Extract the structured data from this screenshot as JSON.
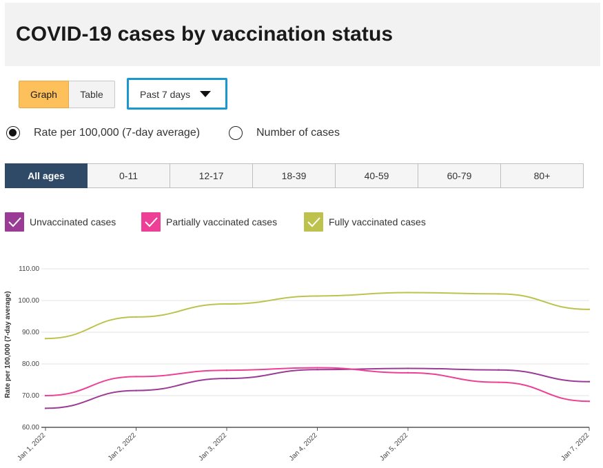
{
  "header": {
    "title": "COVID-19 cases by vaccination status"
  },
  "view_toggle": {
    "graph_label": "Graph",
    "table_label": "Table",
    "active": "Graph"
  },
  "period_select": {
    "value": "Past 7 days"
  },
  "measure_radio": [
    {
      "label": "Rate per 100,000 (7-day average)",
      "checked": true
    },
    {
      "label": "Number of cases",
      "checked": false
    }
  ],
  "age_tabs": {
    "active": "All ages",
    "items": [
      "All ages",
      "0-11",
      "12-17",
      "18-39",
      "40-59",
      "60-79",
      "80+"
    ]
  },
  "legend": [
    {
      "label": "Unvaccinated cases",
      "color": "#9a3b95",
      "checked": true
    },
    {
      "label": "Partially vaccinated cases",
      "color": "#ed3f95",
      "checked": true
    },
    {
      "label": "Fully vaccinated cases",
      "color": "#bdc24d",
      "checked": true
    }
  ],
  "chart_data": {
    "type": "line",
    "title": "",
    "ylabel": "Rate per 100,000 (7-day average)",
    "xlabel": "",
    "ylim": [
      60,
      110
    ],
    "yticks": [
      "60.00",
      "70.00",
      "80.00",
      "90.00",
      "100.00",
      "110.00"
    ],
    "x": [
      "2022-01-01",
      "2022-01-02",
      "2022-01-03",
      "2022-01-04",
      "2022-01-05",
      "2022-01-06",
      "2022-01-07"
    ],
    "x_tick_labels": [
      {
        "date": "2022-01-01",
        "label": "Jan 1, 2022"
      },
      {
        "date": "2022-01-02",
        "label": "Jan 2, 2022"
      },
      {
        "date": "2022-01-03",
        "label": "Jan 3, 2022"
      },
      {
        "date": "2022-01-04",
        "label": "Jan 4, 2022"
      },
      {
        "date": "2022-01-05",
        "label": "Jan 5, 2022"
      },
      {
        "date": "2022-01-07",
        "label": "Jan 7, 2022"
      }
    ],
    "grid": true,
    "series": [
      {
        "name": "Fully vaccinated cases",
        "color": "#bdc24d",
        "values": [
          88.0,
          94.8,
          98.9,
          101.4,
          102.5,
          102.1,
          97.2
        ]
      },
      {
        "name": "Unvaccinated cases",
        "color": "#9a3b95",
        "values": [
          66.0,
          71.6,
          75.4,
          78.2,
          78.6,
          78.1,
          74.4
        ]
      },
      {
        "name": "Partially vaccinated cases",
        "color": "#ed3f95",
        "values": [
          70.0,
          76.0,
          78.0,
          78.8,
          77.2,
          74.2,
          68.2
        ]
      }
    ]
  }
}
